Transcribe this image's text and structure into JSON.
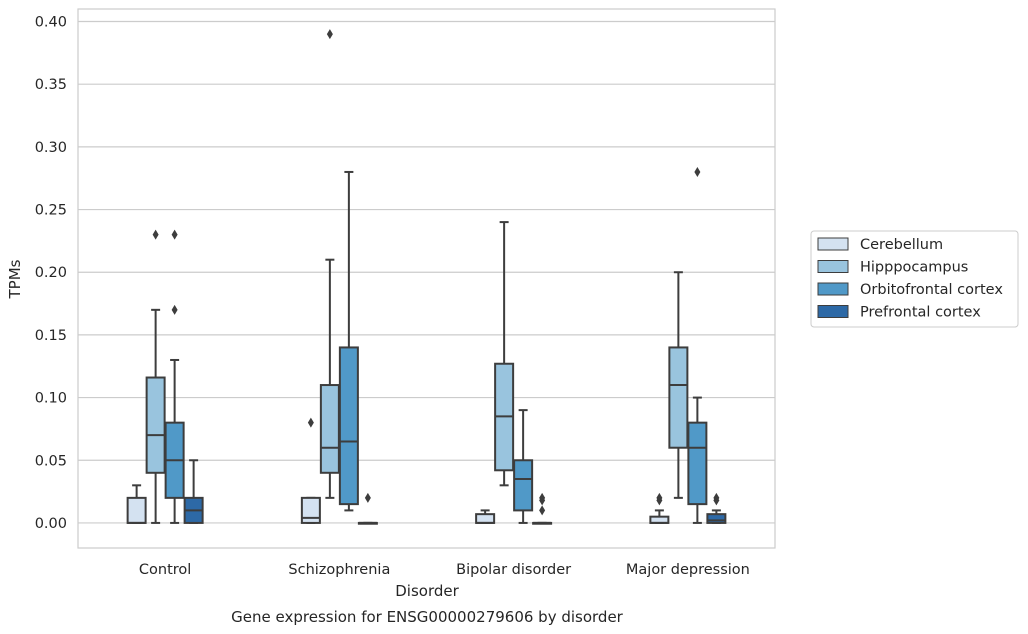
{
  "chart_data": {
    "type": "box",
    "caption": "Gene expression for ENSG00000279606 by disorder",
    "xlabel": "Disorder",
    "ylabel": "TPMs",
    "ylim": [
      -0.02,
      0.41
    ],
    "yticks": [
      "0.00",
      "0.05",
      "0.10",
      "0.15",
      "0.20",
      "0.25",
      "0.30",
      "0.35",
      "0.40"
    ],
    "ytick_values": [
      0,
      0.05,
      0.1,
      0.15,
      0.2,
      0.25,
      0.3,
      0.35,
      0.4
    ],
    "grid": "horizontal",
    "legend_position": "right",
    "categories": [
      "Control",
      "Schizophrenia",
      "Bipolar disorder",
      "Major depression"
    ],
    "series": [
      {
        "name": "Cerebellum",
        "color": "#d4e2f1",
        "boxes": [
          {
            "whislo": 0,
            "q1": 0,
            "med": 0,
            "q3": 0.02,
            "whishi": 0.03,
            "fliers": []
          },
          {
            "whislo": 0,
            "q1": 0,
            "med": 0.004,
            "q3": 0.02,
            "whishi": 0.02,
            "fliers": [
              0.08
            ]
          },
          {
            "whislo": 0,
            "q1": 0,
            "med": 0,
            "q3": 0.007,
            "whishi": 0.01,
            "fliers": []
          },
          {
            "whislo": 0,
            "q1": 0,
            "med": 0,
            "q3": 0.005,
            "whishi": 0.01,
            "fliers": [
              0.02,
              0.018
            ]
          }
        ]
      },
      {
        "name": "Hipppocampus",
        "color": "#99c4de",
        "boxes": [
          {
            "whislo": 0,
            "q1": 0.04,
            "med": 0.07,
            "q3": 0.116,
            "whishi": 0.17,
            "fliers": [
              0.23
            ]
          },
          {
            "whislo": 0.02,
            "q1": 0.04,
            "med": 0.06,
            "q3": 0.11,
            "whishi": 0.21,
            "fliers": [
              0.39
            ]
          },
          {
            "whislo": 0.03,
            "q1": 0.042,
            "med": 0.085,
            "q3": 0.127,
            "whishi": 0.24,
            "fliers": []
          },
          {
            "whislo": 0.02,
            "q1": 0.06,
            "med": 0.11,
            "q3": 0.14,
            "whishi": 0.2,
            "fliers": []
          }
        ]
      },
      {
        "name": "Orbitofrontal cortex",
        "color": "#5099c8",
        "boxes": [
          {
            "whislo": 0,
            "q1": 0.02,
            "med": 0.05,
            "q3": 0.08,
            "whishi": 0.13,
            "fliers": [
              0.17,
              0.23
            ]
          },
          {
            "whislo": 0.01,
            "q1": 0.015,
            "med": 0.065,
            "q3": 0.14,
            "whishi": 0.28,
            "fliers": []
          },
          {
            "whislo": 0,
            "q1": 0.01,
            "med": 0.035,
            "q3": 0.05,
            "whishi": 0.09,
            "fliers": []
          },
          {
            "whislo": 0,
            "q1": 0.015,
            "med": 0.06,
            "q3": 0.08,
            "whishi": 0.1,
            "fliers": [
              0.28
            ]
          }
        ]
      },
      {
        "name": "Prefrontal cortex",
        "color": "#2d69a6",
        "boxes": [
          {
            "whislo": 0,
            "q1": 0,
            "med": 0.01,
            "q3": 0.02,
            "whishi": 0.05,
            "fliers": []
          },
          {
            "whislo": 0,
            "q1": 0,
            "med": 0,
            "q3": 0,
            "whishi": 0,
            "fliers": [
              0.02
            ]
          },
          {
            "whislo": 0,
            "q1": 0,
            "med": 0,
            "q3": 0,
            "whishi": 0,
            "fliers": [
              0.02,
              0.018,
              0.01
            ]
          },
          {
            "whislo": 0,
            "q1": 0,
            "med": 0.002,
            "q3": 0.007,
            "whishi": 0.01,
            "fliers": [
              0.02,
              0.018
            ]
          }
        ]
      }
    ]
  }
}
